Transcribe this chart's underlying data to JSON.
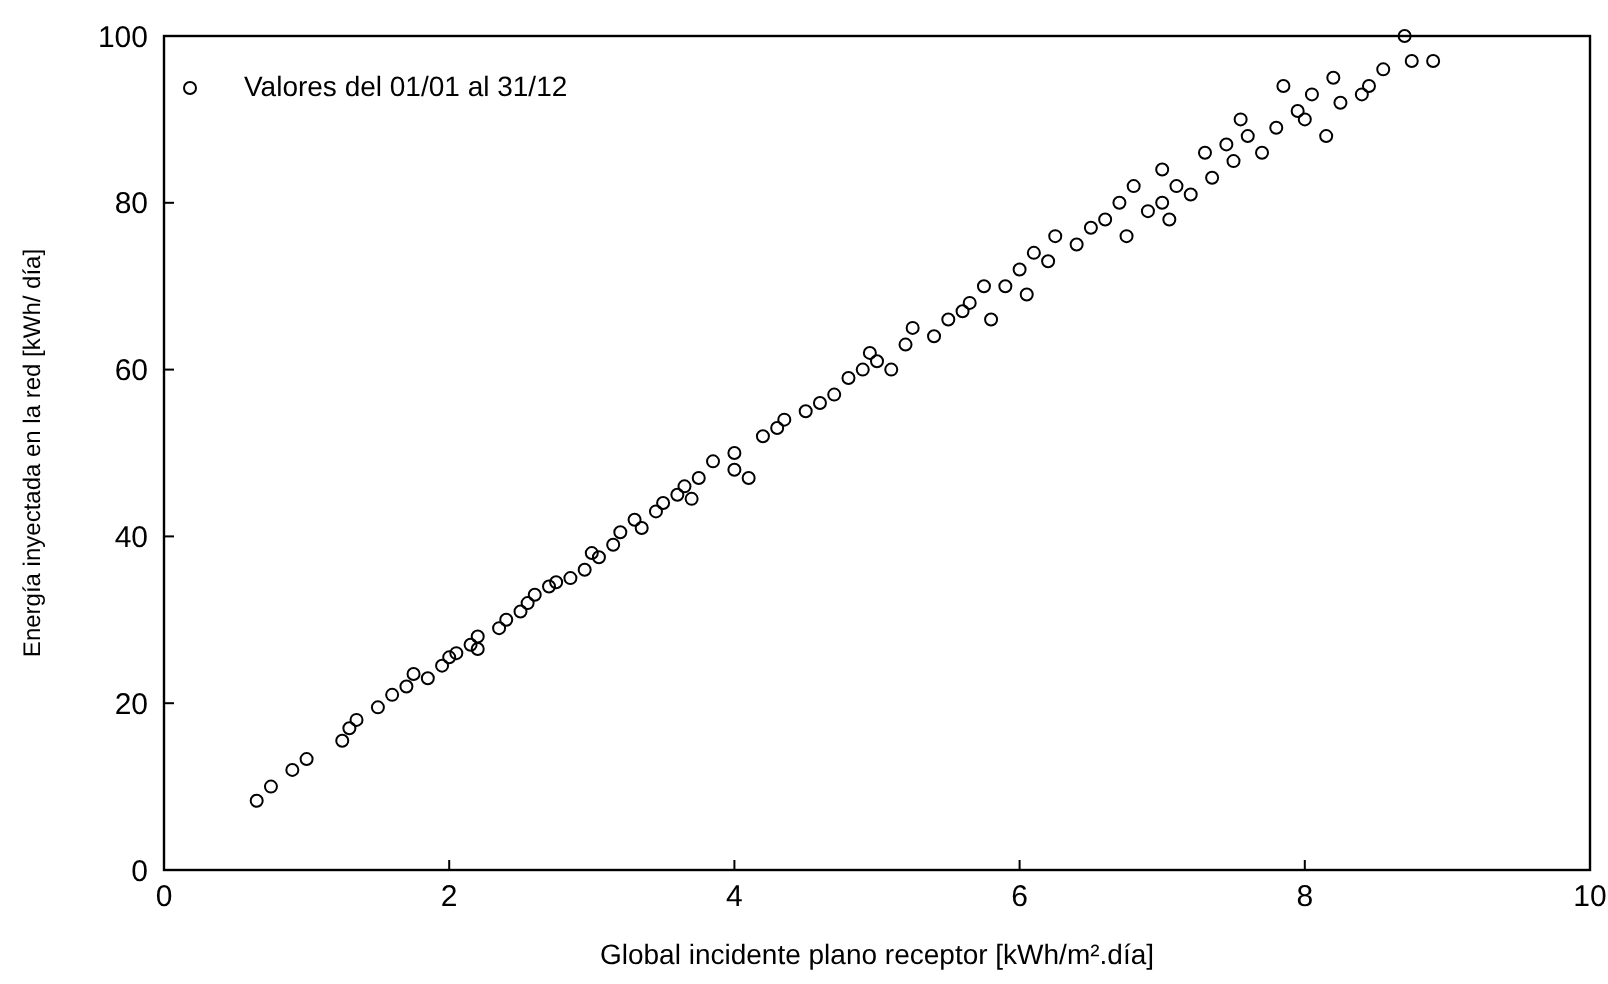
{
  "chart_data": {
    "type": "scatter",
    "xlabel": "Global incidente plano receptor [kWh/m².día]",
    "ylabel": "Energía inyectada en la red  [kWh/ día]",
    "xlim": [
      0,
      10
    ],
    "ylim": [
      0,
      100
    ],
    "xticks": [
      0,
      2,
      4,
      6,
      8,
      10
    ],
    "yticks": [
      0,
      20,
      40,
      60,
      80,
      100
    ],
    "grid": false,
    "legend": "top left",
    "marker": "circle",
    "series": [
      {
        "name": "Valores del 01/01 al 31/12",
        "color": "#000000",
        "x": [
          0.65,
          0.75,
          0.9,
          1.0,
          1.25,
          1.3,
          1.35,
          1.5,
          1.6,
          1.7,
          1.75,
          1.85,
          1.95,
          2.0,
          2.05,
          2.15,
          2.2,
          2.2,
          2.35,
          2.4,
          2.5,
          2.55,
          2.6,
          2.7,
          2.75,
          2.85,
          2.95,
          3.0,
          3.05,
          3.15,
          3.2,
          3.3,
          3.35,
          3.45,
          3.5,
          3.6,
          3.65,
          3.7,
          3.75,
          3.85,
          4.0,
          4.0,
          4.1,
          4.2,
          4.3,
          4.35,
          4.5,
          4.6,
          4.7,
          4.8,
          4.9,
          4.95,
          5.0,
          5.1,
          5.2,
          5.25,
          5.4,
          5.5,
          5.6,
          5.65,
          5.75,
          5.8,
          5.9,
          6.0,
          6.05,
          6.1,
          6.2,
          6.25,
          6.4,
          6.5,
          6.6,
          6.7,
          6.75,
          6.8,
          6.9,
          7.0,
          7.0,
          7.05,
          7.1,
          7.2,
          7.3,
          7.35,
          7.45,
          7.5,
          7.55,
          7.6,
          7.7,
          7.8,
          7.85,
          7.95,
          8.0,
          8.05,
          8.15,
          8.2,
          8.25,
          8.4,
          8.45,
          8.55,
          8.7,
          8.75,
          8.9
        ],
        "values": [
          8.3,
          10,
          12,
          13.3,
          15.5,
          17,
          18,
          19.5,
          21,
          22,
          23.5,
          23,
          24.5,
          25.5,
          26,
          27,
          28,
          26.5,
          29,
          30,
          31,
          32,
          33,
          34,
          34.5,
          35,
          36,
          38,
          37.5,
          39,
          40.5,
          42,
          41,
          43,
          44,
          45,
          46,
          44.5,
          47,
          49,
          50,
          48,
          47,
          52,
          53,
          54,
          55,
          56,
          57,
          59,
          60,
          62,
          61,
          60,
          63,
          65,
          64,
          66,
          67,
          68,
          70,
          66,
          70,
          72,
          69,
          74,
          73,
          76,
          75,
          77,
          78,
          80,
          76,
          82,
          79,
          80,
          84,
          78,
          82,
          81,
          86,
          83,
          87,
          85,
          90,
          88,
          86,
          89,
          94,
          91,
          90,
          93,
          88,
          95,
          92,
          93,
          94,
          96,
          100,
          97,
          97
        ]
      }
    ]
  }
}
